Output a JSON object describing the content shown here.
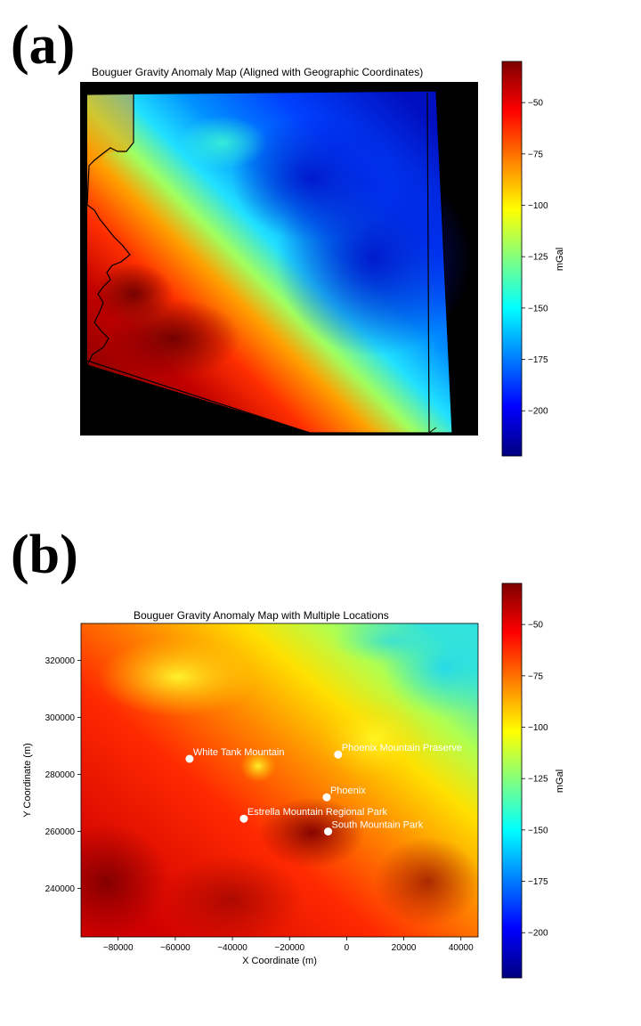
{
  "panels": {
    "a_label": "(a)",
    "b_label": "(b)"
  },
  "colormap": [
    "#00007f",
    "#0000ff",
    "#0080ff",
    "#00ffff",
    "#80ff80",
    "#ffff00",
    "#ff8000",
    "#ff0000",
    "#7f0000"
  ],
  "chart_data": [
    {
      "type": "heatmap",
      "title": "Bouguer Gravity Anomaly Map (Aligned with Geographic Coordinates)",
      "colorbar": {
        "label": "mGal",
        "range": [
          -222,
          -30
        ],
        "ticks": [
          -50,
          -75,
          -100,
          -125,
          -150,
          -175,
          -200
        ],
        "tick_labels": [
          "−50",
          "−75",
          "−100",
          "−125",
          "−150",
          "−175",
          "−200"
        ]
      },
      "axes_visible": false,
      "background": "#000000",
      "pattern": "high anomaly (red, about -40 mGal) in the southwest, decreasing to low anomaly (blue, about -210 mGal) in the northeast"
    },
    {
      "type": "heatmap",
      "title": "Bouguer Gravity Anomaly Map with Multiple Locations",
      "xlabel": "X Coordinate (m)",
      "ylabel": "Y Coordinate (m)",
      "xlim": [
        -93000,
        46000
      ],
      "ylim": [
        223000,
        333000
      ],
      "xticks": [
        -80000,
        -60000,
        -40000,
        -20000,
        0,
        20000,
        40000
      ],
      "xtick_labels": [
        "−80000",
        "−60000",
        "−40000",
        "−20000",
        "0",
        "20000",
        "40000"
      ],
      "yticks": [
        240000,
        260000,
        280000,
        300000,
        320000
      ],
      "ytick_labels": [
        "240000",
        "260000",
        "280000",
        "300000",
        "320000"
      ],
      "colorbar": {
        "label": "mGal",
        "range": [
          -222,
          -30
        ],
        "ticks": [
          -50,
          -75,
          -100,
          -125,
          -150,
          -175,
          -200
        ],
        "tick_labels": [
          "−50",
          "−75",
          "−100",
          "−125",
          "−150",
          "−175",
          "−200"
        ]
      },
      "locations": [
        {
          "name": "White Tank Mountain",
          "x": -55000,
          "y": 285500
        },
        {
          "name": "Phoenix Mountain Praserve",
          "x": -3000,
          "y": 287000
        },
        {
          "name": "Phoenix",
          "x": -7000,
          "y": 272000
        },
        {
          "name": "Estrella Mountain Regional Park",
          "x": -36000,
          "y": 264500
        },
        {
          "name": "South Mountain Park",
          "x": -6500,
          "y": 260000
        }
      ]
    }
  ]
}
